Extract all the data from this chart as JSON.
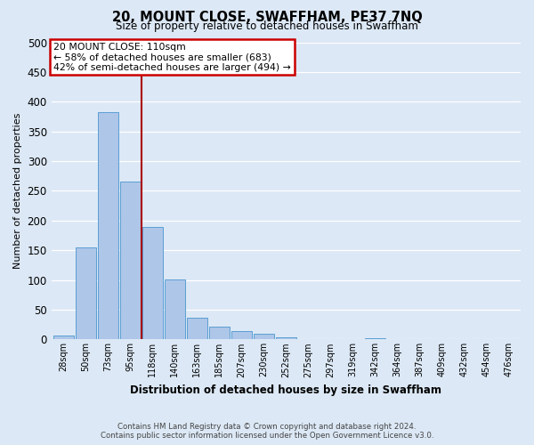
{
  "title": "20, MOUNT CLOSE, SWAFFHAM, PE37 7NQ",
  "subtitle": "Size of property relative to detached houses in Swaffham",
  "xlabel": "Distribution of detached houses by size in Swaffham",
  "ylabel": "Number of detached properties",
  "footer_line1": "Contains HM Land Registry data © Crown copyright and database right 2024.",
  "footer_line2": "Contains public sector information licensed under the Open Government Licence v3.0.",
  "bar_labels": [
    "28sqm",
    "50sqm",
    "73sqm",
    "95sqm",
    "118sqm",
    "140sqm",
    "163sqm",
    "185sqm",
    "207sqm",
    "230sqm",
    "252sqm",
    "275sqm",
    "297sqm",
    "319sqm",
    "342sqm",
    "364sqm",
    "387sqm",
    "409sqm",
    "432sqm",
    "454sqm",
    "476sqm"
  ],
  "bar_values": [
    6,
    155,
    382,
    265,
    190,
    101,
    37,
    22,
    14,
    9,
    3,
    1,
    0,
    0,
    2,
    0,
    0,
    0,
    1,
    0,
    0
  ],
  "bar_color": "#aec6e8",
  "bar_edge_color": "#5a9fd4",
  "background_color": "#dce8f5",
  "grid_color": "#ffffff",
  "vline_color": "#aa0000",
  "annotation_title": "20 MOUNT CLOSE: 110sqm",
  "annotation_line1": "← 58% of detached houses are smaller (683)",
  "annotation_line2": "42% of semi-detached houses are larger (494) →",
  "annotation_box_color": "#ffffff",
  "annotation_box_edge_color": "#cc0000",
  "ylim": [
    0,
    500
  ],
  "yticks": [
    0,
    50,
    100,
    150,
    200,
    250,
    300,
    350,
    400,
    450,
    500
  ]
}
